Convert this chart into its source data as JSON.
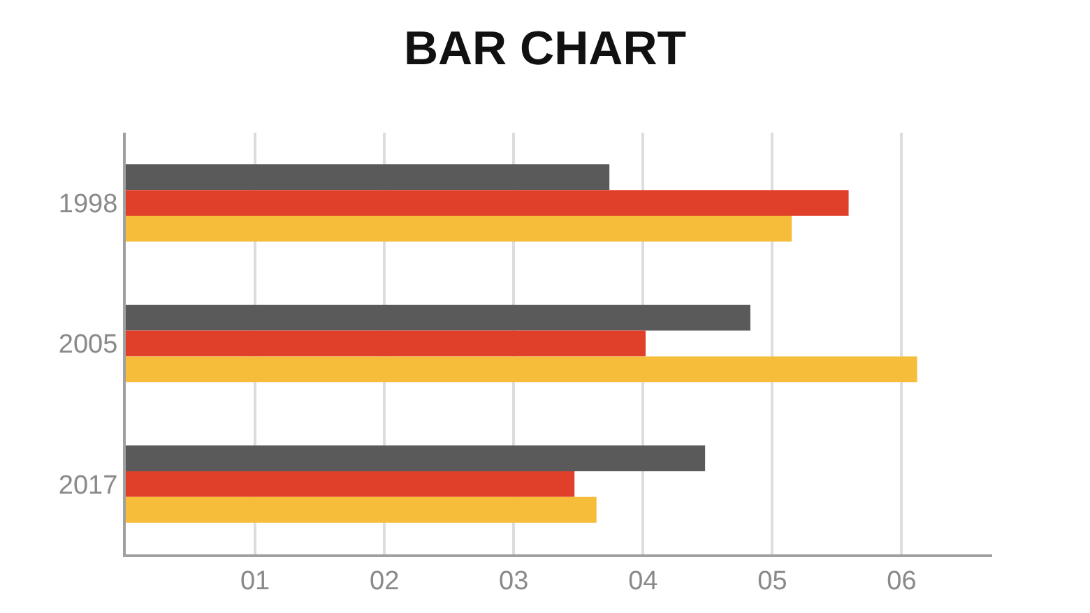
{
  "chart_data": {
    "type": "bar",
    "title": "BAR CHART",
    "orientation": "horizontal",
    "categories": [
      "1998",
      "2005",
      "2017"
    ],
    "series": [
      {
        "color": "#5a5a5a",
        "values": [
          3.74,
          4.83,
          4.48
        ]
      },
      {
        "color": "#e0402a",
        "values": [
          5.59,
          4.02,
          3.47
        ]
      },
      {
        "color": "#f5bd3a",
        "values": [
          5.15,
          6.12,
          3.64
        ]
      }
    ],
    "xlim": [
      0,
      6.7
    ],
    "xticks": [
      {
        "value": 1,
        "label": "01"
      },
      {
        "value": 2,
        "label": "02"
      },
      {
        "value": 3,
        "label": "03"
      },
      {
        "value": 4,
        "label": "04"
      },
      {
        "value": 5,
        "label": "05"
      },
      {
        "value": 6,
        "label": "06"
      }
    ],
    "grid": "x",
    "legend": false
  }
}
